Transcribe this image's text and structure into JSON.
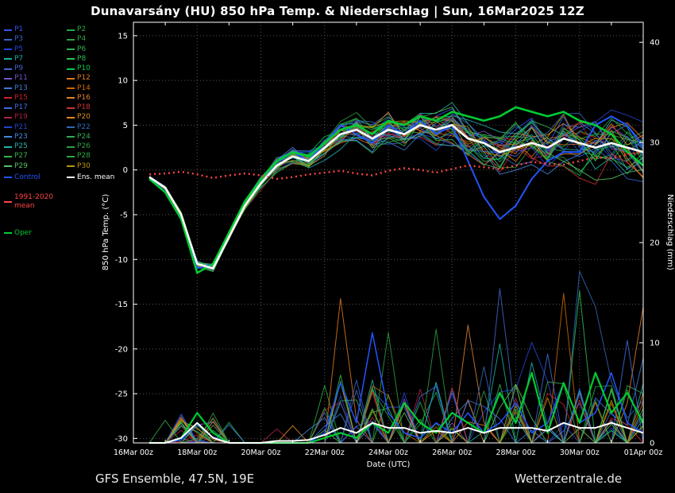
{
  "title": "Dunavarsány  (HU)  850 hPa Temp. & Niederschlag | Sun, 16Mar2025 12Z",
  "footer": {
    "left": "GFS Ensemble, 47.5N, 19E",
    "right": "Wetterzentrale.de"
  },
  "axes": {
    "y_left_label": "850 hPa Temp. (°C)",
    "y_right_label": "Niederschlag (mm)",
    "x_label": "Date (UTC)",
    "y_left_ticks": [
      15,
      10,
      5,
      0,
      -5,
      -10,
      -15,
      -20,
      -25,
      -30
    ],
    "y_right_ticks": [
      40,
      30,
      20,
      10,
      0
    ],
    "x_ticks": [
      "16Mar 00z",
      "18Mar 00z",
      "20Mar 00z",
      "22Mar 00z",
      "24Mar 00z",
      "26Mar 00z",
      "28Mar 00z",
      "30Mar 00z",
      "01Apr 00z"
    ]
  },
  "legend": {
    "members": [
      {
        "label": "P1",
        "color": "#3355ee"
      },
      {
        "label": "P2",
        "color": "#22aa44"
      },
      {
        "label": "P3",
        "color": "#3366cc"
      },
      {
        "label": "P4",
        "color": "#2e9e40"
      },
      {
        "label": "P5",
        "color": "#2244dd"
      },
      {
        "label": "P6",
        "color": "#30b050"
      },
      {
        "label": "P7",
        "color": "#18b2a0"
      },
      {
        "label": "P8",
        "color": "#2fbf4f"
      },
      {
        "label": "P9",
        "color": "#4466cc"
      },
      {
        "label": "P10",
        "color": "#00cc44"
      },
      {
        "label": "P11",
        "color": "#7755cc"
      },
      {
        "label": "P12",
        "color": "#e07820"
      },
      {
        "label": "P13",
        "color": "#3a7bd5"
      },
      {
        "label": "P14",
        "color": "#cc6600"
      },
      {
        "label": "P15",
        "color": "#cc2222"
      },
      {
        "label": "P16",
        "color": "#e08030"
      },
      {
        "label": "P17",
        "color": "#4169e1"
      },
      {
        "label": "P18",
        "color": "#cc3333"
      },
      {
        "label": "P19",
        "color": "#aa2244"
      },
      {
        "label": "P20",
        "color": "#dd8822"
      },
      {
        "label": "P21",
        "color": "#2244cc"
      },
      {
        "label": "P22",
        "color": "#3366bb"
      },
      {
        "label": "P23",
        "color": "#4488dd"
      },
      {
        "label": "P24",
        "color": "#33aa55"
      },
      {
        "label": "P25",
        "color": "#20b2aa"
      },
      {
        "label": "P26",
        "color": "#2e9e40"
      },
      {
        "label": "P27",
        "color": "#35b34a"
      },
      {
        "label": "P28",
        "color": "#28a745"
      },
      {
        "label": "P29",
        "color": "#56c060"
      },
      {
        "label": "P30",
        "color": "#b8960c"
      }
    ],
    "control": {
      "label": "Control",
      "color": "#2255ff"
    },
    "ens_mean": {
      "label": "Ens. mean",
      "color": "#ffffff"
    },
    "clim": {
      "label": "1991-2020 mean",
      "color": "#ff4444"
    },
    "oper": {
      "label": "Oper",
      "color": "#00cc33"
    }
  },
  "chart_data": {
    "type": "line",
    "title": "Dunavarsány (HU) 850 hPa Temp. & Niederschlag | Sun, 16Mar2025 12Z",
    "xlabel": "Date (UTC)",
    "ylabel_left": "850 hPa Temp. (°C)",
    "ylabel_right": "Niederschlag (mm)",
    "temp_ylim": [
      -30,
      15
    ],
    "precip_ylim": [
      0,
      40
    ],
    "x_range_hours": [
      0,
      384
    ],
    "x_ticks_hours": [
      0,
      48,
      96,
      144,
      192,
      240,
      288,
      336,
      384
    ],
    "x_hours": [
      12,
      24,
      36,
      48,
      60,
      72,
      84,
      96,
      108,
      120,
      132,
      144,
      156,
      168,
      180,
      192,
      204,
      216,
      228,
      240,
      252,
      264,
      276,
      288,
      300,
      312,
      324,
      336,
      348,
      360,
      372,
      384
    ],
    "series": {
      "ens_mean": [
        -0.8,
        -2,
        -5,
        -10.5,
        -11,
        -7.5,
        -4,
        -1.5,
        0.5,
        1.5,
        1,
        2.5,
        4,
        4.5,
        3.5,
        4.5,
        4,
        5,
        4.5,
        5,
        3.5,
        3,
        2,
        2.5,
        3,
        2.5,
        3.5,
        3,
        2.5,
        3,
        2.5,
        2
      ],
      "control": [
        -0.8,
        -2,
        -5,
        -11,
        -10.5,
        -7,
        -3.5,
        -1,
        1,
        2,
        1,
        3,
        5,
        4,
        3,
        5,
        4,
        5.5,
        4,
        5,
        1,
        -3,
        -5.5,
        -4,
        -1,
        1,
        2,
        2,
        5,
        6,
        5,
        2.5
      ],
      "oper": [
        -1,
        -2.5,
        -5.5,
        -11.5,
        -10.5,
        -7,
        -3.5,
        -1,
        1,
        2,
        1.5,
        3,
        4.5,
        5,
        4,
        5.5,
        5,
        6,
        5.5,
        6.5,
        6,
        5.5,
        6,
        7,
        6.5,
        6,
        6.5,
        5.5,
        5,
        4,
        2,
        0.5
      ],
      "clim_mean": [
        -0.5,
        -0.4,
        -0.2,
        -0.5,
        -0.9,
        -0.6,
        -0.4,
        -0.6,
        -1,
        -0.8,
        -0.5,
        -0.3,
        -0.1,
        -0.4,
        -0.6,
        -0.1,
        0.2,
        0,
        -0.3,
        0.1,
        0.5,
        0.3,
        0.1,
        0.5,
        0.9,
        0.7,
        0.6,
        1,
        1.4,
        1.3,
        1.7,
        2
      ]
    },
    "precip": {
      "ens_mean": [
        0,
        0,
        0.5,
        2,
        0.5,
        0,
        0,
        0,
        0.2,
        0.2,
        0.3,
        0.8,
        1.5,
        1,
        2,
        1.5,
        1.5,
        1,
        1.2,
        1,
        1.5,
        1,
        1.5,
        1.5,
        1.5,
        1.2,
        2,
        1.5,
        1.5,
        2,
        1.5,
        1
      ],
      "control": [
        0,
        0,
        0.3,
        2,
        0.5,
        0,
        0,
        0,
        0,
        0,
        0,
        1,
        6,
        2,
        11,
        3,
        1,
        0.5,
        2,
        1,
        3,
        1,
        2,
        4,
        1,
        2,
        6,
        2,
        3,
        7,
        2,
        1
      ],
      "oper": [
        0,
        0,
        0.5,
        3,
        1,
        0,
        0,
        0,
        0,
        0,
        0,
        0.5,
        1,
        0.5,
        2,
        1,
        4,
        2,
        1,
        3,
        2,
        1,
        5,
        2,
        7,
        1,
        6,
        2,
        7,
        3,
        5,
        2
      ]
    },
    "ensemble": {
      "count": 30,
      "seed": 20250316,
      "spread": [
        0.2,
        0.3,
        0.4,
        0.6,
        0.7,
        0.8,
        0.8,
        1,
        1.2,
        1.4,
        1.5,
        1.8,
        2,
        2.2,
        2.4,
        2.5,
        2.6,
        2.8,
        3,
        3,
        3.2,
        3.5,
        3.6,
        3.8,
        4,
        4,
        4.2,
        4.3,
        4.4,
        4.5,
        4.6,
        4.7
      ]
    }
  }
}
